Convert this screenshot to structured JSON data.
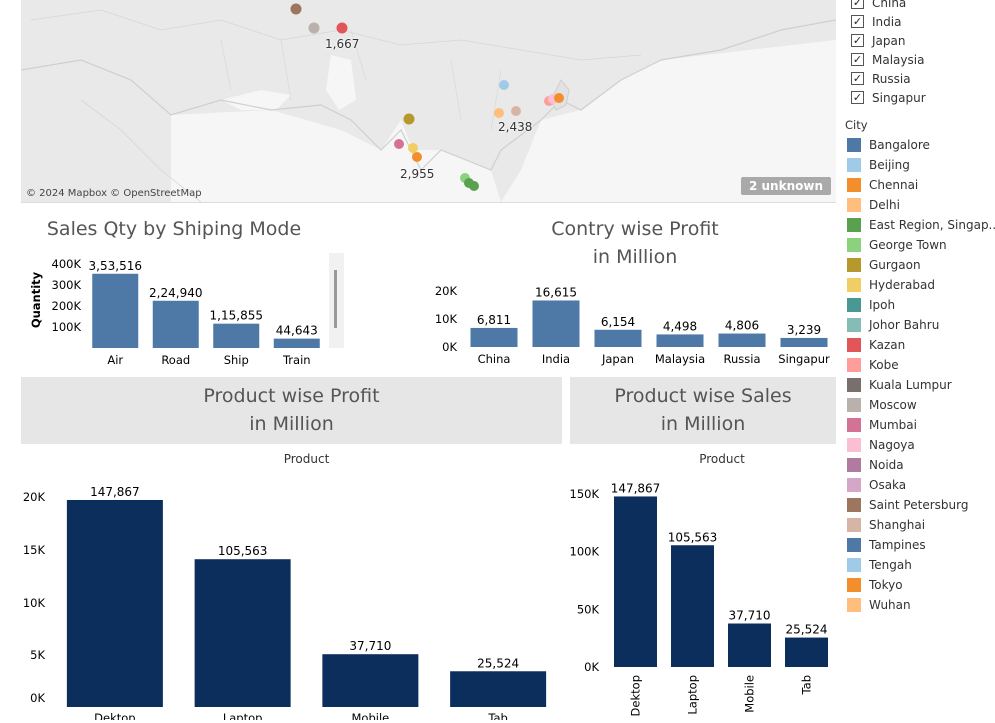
{
  "map": {
    "attribution": "© 2024 Mapbox © OpenStreetMap",
    "unknown_badge": "2 unknown",
    "labels": {
      "russia": "1,667",
      "east": "2,438",
      "south": "2,955"
    }
  },
  "filter_countries": {
    "items": [
      {
        "label": "China",
        "checked": true
      },
      {
        "label": "India",
        "checked": true
      },
      {
        "label": "Japan",
        "checked": true
      },
      {
        "label": "Malaysia",
        "checked": true
      },
      {
        "label": "Russia",
        "checked": true
      },
      {
        "label": "Singapur",
        "checked": true
      }
    ]
  },
  "legend": {
    "title": "City",
    "items": [
      {
        "label": "Bangalore",
        "color": "#4e79a7"
      },
      {
        "label": "Beijing",
        "color": "#a0cbe8"
      },
      {
        "label": "Chennai",
        "color": "#f28e2b"
      },
      {
        "label": "Delhi",
        "color": "#ffbe7d"
      },
      {
        "label": "East Region, Singap..",
        "color": "#59a14f"
      },
      {
        "label": "George Town",
        "color": "#8cd17d"
      },
      {
        "label": "Gurgaon",
        "color": "#b6992d"
      },
      {
        "label": "Hyderabad",
        "color": "#f1ce63"
      },
      {
        "label": "Ipoh",
        "color": "#499894"
      },
      {
        "label": "Johor Bahru",
        "color": "#86bcb6"
      },
      {
        "label": "Kazan",
        "color": "#e15759"
      },
      {
        "label": "Kobe",
        "color": "#ff9d9a"
      },
      {
        "label": "Kuala Lumpur",
        "color": "#79706e"
      },
      {
        "label": "Moscow",
        "color": "#bab0ac"
      },
      {
        "label": "Mumbai",
        "color": "#d37295"
      },
      {
        "label": "Nagoya",
        "color": "#fabfd2"
      },
      {
        "label": "Noida",
        "color": "#b07aa1"
      },
      {
        "label": "Osaka",
        "color": "#d4a6c8"
      },
      {
        "label": "Saint Petersburg",
        "color": "#9d7660"
      },
      {
        "label": "Shanghai",
        "color": "#d7b5a6"
      },
      {
        "label": "Tampines",
        "color": "#4e79a7"
      },
      {
        "label": "Tengah",
        "color": "#a0cbe8"
      },
      {
        "label": "Tokyo",
        "color": "#f28e2b"
      },
      {
        "label": "Wuhan",
        "color": "#ffbe7d"
      }
    ]
  },
  "chart_data": [
    {
      "type": "bar",
      "title": "Sales Qty by Shiping Mode",
      "ylabel": "Quantity",
      "categories": [
        "Air",
        "Road",
        "Ship",
        "Train"
      ],
      "values": [
        353516,
        224940,
        115855,
        44643
      ],
      "value_labels": [
        "3,53,516",
        "2,24,940",
        "1,15,855",
        "44,643"
      ],
      "yticks": [
        "400K",
        "300K",
        "200K",
        "100K"
      ],
      "ylim": [
        0,
        400000
      ],
      "color": "#4e79a7"
    },
    {
      "type": "bar",
      "title_lines": [
        "Contry wise Profit",
        "in Million"
      ],
      "categories": [
        "China",
        "India",
        "Japan",
        "Malaysia",
        "Russia",
        "Singapur"
      ],
      "values": [
        6811,
        16615,
        6154,
        4498,
        4806,
        3239
      ],
      "value_labels": [
        "6,811",
        "16,615",
        "6,154",
        "4,498",
        "4,806",
        "3,239"
      ],
      "yticks": [
        "20K",
        "10K",
        "0K"
      ],
      "ylim": [
        0,
        20000
      ],
      "color": "#4e79a7"
    },
    {
      "type": "bar",
      "title_lines": [
        "Product wise Profit",
        "in Million"
      ],
      "xlabel": "Product",
      "categories": [
        "Dektop",
        "Laptop",
        "Mobile",
        "Tab"
      ],
      "values": [
        147867,
        105563,
        37710,
        25524
      ],
      "value_labels": [
        "147,867",
        "105,563",
        "37,710",
        "25,524"
      ],
      "yticks": [
        "20K",
        "15K",
        "10K",
        "5K",
        "0K"
      ],
      "color": "#0b2e5c"
    },
    {
      "type": "bar",
      "title_lines": [
        "Product wise Sales",
        "in Million"
      ],
      "xlabel": "Product",
      "categories": [
        "Dektop",
        "Laptop",
        "Mobile",
        "Tab"
      ],
      "values": [
        147867,
        105563,
        37710,
        25524
      ],
      "value_labels": [
        "147,867",
        "105,563",
        "37,710",
        "25,524"
      ],
      "yticks": [
        "150K",
        "100K",
        "50K",
        "0K"
      ],
      "ylim": [
        0,
        150000
      ],
      "color": "#0b2e5c"
    }
  ]
}
